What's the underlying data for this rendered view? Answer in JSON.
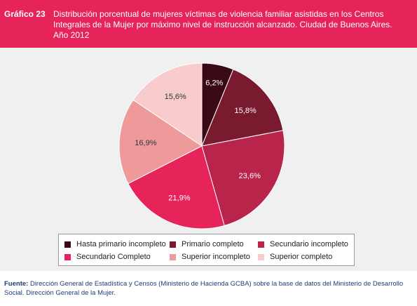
{
  "header": {
    "label": "Gráfico 23",
    "title": "Distribución porcentual de mujeres víctimas de violencia familiar asistidas en los Centros Integrales de la Mujer por máximo nivel de instrucción alcanzado. Ciudad de Buenos Aires. Año 2012"
  },
  "chart_data": {
    "type": "pie",
    "title": "Distribución porcentual de mujeres víctimas de violencia familiar asistidas en los Centros Integrales de la Mujer por máximo nivel de instrucción alcanzado. Ciudad de Buenos Aires. Año 2012",
    "categories": [
      "Hasta primario incompleto",
      "Primario completo",
      "Secundario incompleto",
      "Secundario Completo",
      "Superior incompleto",
      "Superior completo"
    ],
    "values": [
      6.2,
      15.8,
      23.6,
      21.9,
      16.9,
      15.6
    ],
    "data_labels": [
      "6,2%",
      "15,8%",
      "23,6%",
      "21,9%",
      "16,9%",
      "15,6%"
    ],
    "colors": [
      "#3a0a14",
      "#7a1a2e",
      "#b8244a",
      "#e6245a",
      "#ef9a9a",
      "#f8cccc"
    ],
    "label_colors": [
      "#ffffff",
      "#ffffff",
      "#ffffff",
      "#ffffff",
      "#333333",
      "#333333"
    ],
    "legend_placement": "bottom"
  },
  "source": {
    "label": "Fuente:",
    "text": " Dirección General de Estadística y Censos (Ministerio de Hacienda GCBA) sobre la base de datos del Ministerio de Desarrollo Social. Dirección General de la Mujer."
  }
}
